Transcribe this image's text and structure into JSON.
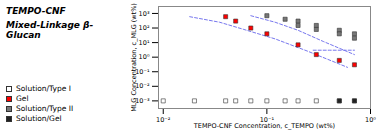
{
  "chart_data": {
    "type": "scatter",
    "xlabel": "TEMPO-CNF Concentration, c_TEMPO (wt%)",
    "ylabel": "MLG Concentration, c_MLG (wt%)",
    "annotations": [
      "TEMPO-CNF",
      "Mixed-Linkage β-Glucan"
    ],
    "log": true,
    "grid": false,
    "legend": "lower left",
    "xlim": [
      0.009,
      1.0
    ],
    "ylim": [
      0.0003,
      3000
    ],
    "xticks": [
      {
        "value": 0.01,
        "label": "10⁻²"
      },
      {
        "value": 0.1,
        "label": "10⁻¹"
      },
      {
        "value": 1,
        "label": "10⁰"
      }
    ],
    "yticks": [
      {
        "value": 0.001,
        "label": "10⁻³"
      },
      {
        "value": 0.01,
        "label": "10⁻²"
      },
      {
        "value": 0.1,
        "label": "10⁻¹"
      },
      {
        "value": 1,
        "label": "10⁰"
      },
      {
        "value": 10,
        "label": "10¹"
      },
      {
        "value": 100,
        "label": "10²"
      },
      {
        "value": 1000,
        "label": "10³"
      }
    ],
    "series": [
      {
        "name": "Solution/Type I",
        "type": "scatter",
        "marker": "square",
        "color": "#ffffff",
        "x": [
          0.01,
          0.02,
          0.04,
          0.05,
          0.07,
          0.1,
          0.15,
          0.2,
          0.3,
          0.5,
          0.7
        ],
        "values": [
          0.001,
          0.001,
          0.001,
          0.001,
          0.001,
          0.001,
          0.001,
          0.001,
          0.001,
          0.001,
          0.001
        ]
      },
      {
        "name": "Gel",
        "type": "scatter",
        "marker": "square",
        "color": "#ff0000",
        "x": [
          0.04,
          0.05,
          0.07,
          0.1,
          0.2,
          0.3,
          0.5,
          0.7
        ],
        "values": [
          600,
          300,
          100,
          40,
          7,
          1.5,
          0.6,
          0.3
        ]
      },
      {
        "name": "Solution/Type II",
        "type": "scatter",
        "marker": "square",
        "color": "#777777",
        "x": [
          0.1,
          0.15,
          0.2,
          0.2,
          0.3,
          0.3,
          0.5,
          0.5,
          0.7,
          0.7
        ],
        "values": [
          700,
          400,
          300,
          150,
          150,
          80,
          70,
          40,
          40,
          20
        ]
      },
      {
        "name": "Solution/Gel",
        "type": "scatter",
        "marker": "square",
        "color": "#222222",
        "x": [
          0.5,
          0.7
        ],
        "values": [
          0.001,
          0.001
        ]
      },
      {
        "type": "line",
        "line_style": "dashed",
        "color": "#7777ee",
        "x": [
          0.018,
          0.035,
          0.06,
          0.12,
          0.25,
          0.6
        ],
        "values": [
          600,
          250,
          80,
          18,
          2.5,
          0.2
        ]
      },
      {
        "type": "line",
        "line_style": "dashed",
        "color": "#7777ee",
        "x": [
          0.07,
          0.12,
          0.2,
          0.35,
          0.7
        ],
        "values": [
          700,
          250,
          70,
          12,
          1.5
        ]
      },
      {
        "type": "line",
        "line_style": "dashed",
        "color": "#7777ee",
        "x": [
          0.28,
          0.4,
          0.7
        ],
        "values": [
          3.0,
          3.0,
          3.0
        ]
      }
    ]
  }
}
